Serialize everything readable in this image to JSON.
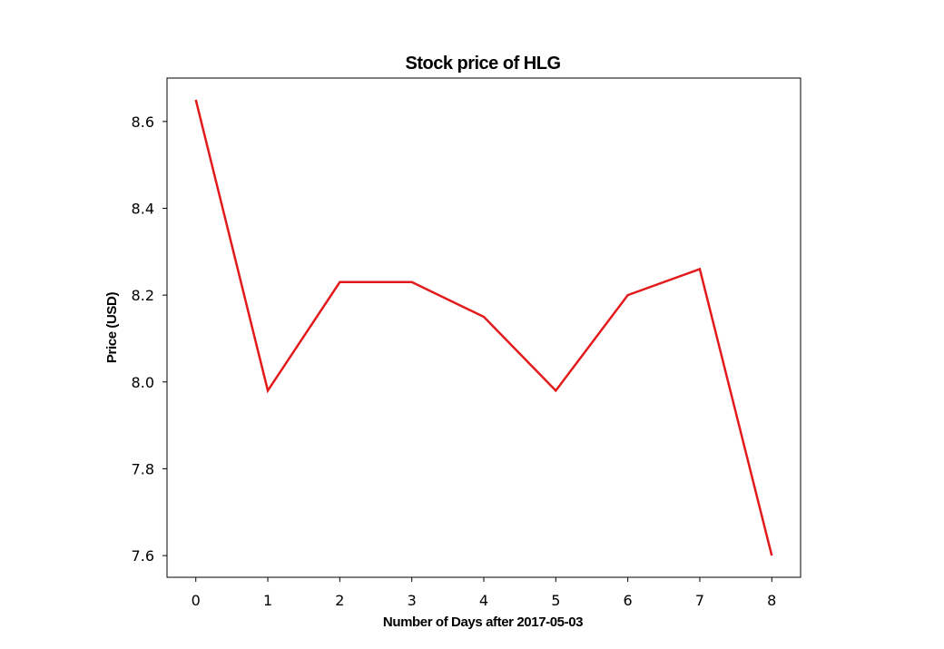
{
  "chart_data": {
    "type": "line",
    "title": "Stock price of HLG",
    "xlabel": "Number of Days after 2017-05-03",
    "ylabel": "Price (USD)",
    "x": [
      0,
      1,
      2,
      3,
      4,
      5,
      6,
      7,
      8
    ],
    "series": [
      {
        "values": [
          8.65,
          7.98,
          8.23,
          8.23,
          8.15,
          7.98,
          8.2,
          8.26,
          7.6
        ],
        "color": "#e31a1c"
      }
    ],
    "xlim": [
      -0.4,
      8.4
    ],
    "ylim": [
      7.55,
      8.7
    ],
    "xticks": [
      0,
      1,
      2,
      3,
      4,
      5,
      6,
      7,
      8
    ],
    "xtick_labels": [
      "0",
      "1",
      "2",
      "3",
      "4",
      "5",
      "6",
      "7",
      "8"
    ],
    "yticks": [
      7.6,
      7.8,
      8.0,
      8.2,
      8.4,
      8.6
    ],
    "ytick_labels": [
      "7.6",
      "7.8",
      "8.0",
      "8.2",
      "8.4",
      "8.6"
    ],
    "grid": false,
    "legend": false
  }
}
